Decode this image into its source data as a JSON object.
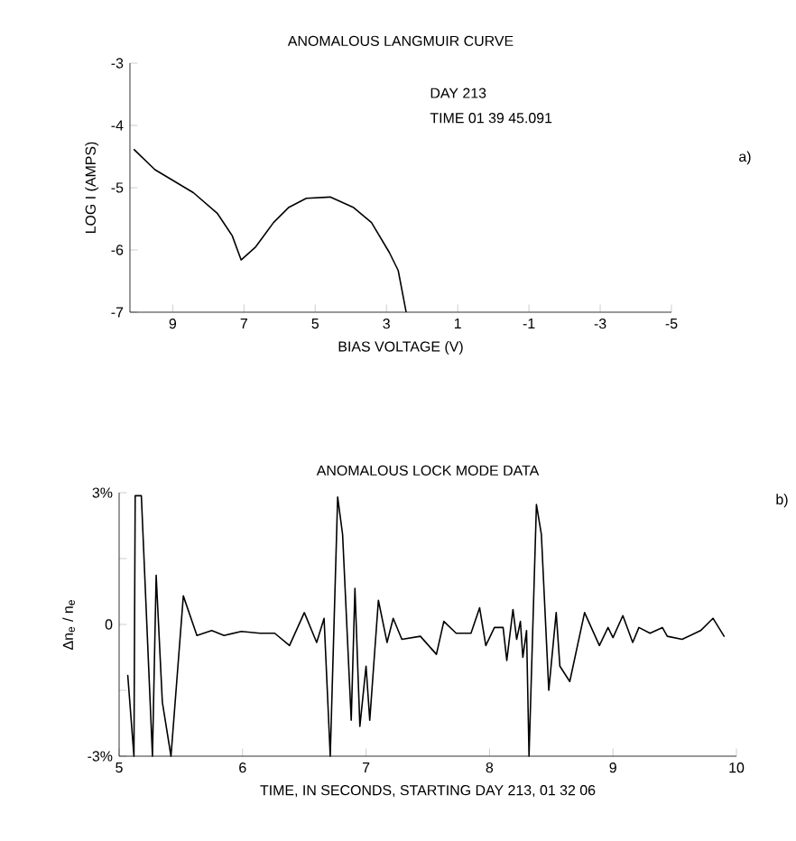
{
  "chart_data": [
    {
      "type": "line",
      "title": "ANOMALOUS LANGMUIR CURVE",
      "xlabel": "BIAS VOLTAGE (V)",
      "ylabel": "LOG I (AMPS)",
      "annotations": [
        "DAY 213",
        "TIME 01 39 45.091",
        "a)"
      ],
      "x": [
        10.08,
        9.5,
        8.42,
        7.75,
        7.33,
        7.08,
        6.67,
        6.17,
        5.75,
        5.25,
        4.58,
        3.92,
        3.42,
        2.92,
        2.67,
        2.45
      ],
      "values": [
        -4.39,
        -4.71,
        -5.08,
        -5.41,
        -5.77,
        -6.16,
        -5.95,
        -5.56,
        -5.32,
        -5.17,
        -5.15,
        -5.32,
        -5.56,
        -6.04,
        -6.33,
        -6.99
      ],
      "color": "#000000",
      "xlim": [
        10.2,
        -5
      ],
      "ylim": [
        -7,
        -3
      ],
      "xticks": [
        9,
        7,
        5,
        3,
        1,
        -1,
        -3,
        -5
      ],
      "yticks": [
        -3,
        -4,
        -5,
        -6,
        -7
      ],
      "grid": false,
      "marker": "none",
      "line_style": "solid"
    },
    {
      "type": "line",
      "title": "ANOMALOUS LOCK MODE DATA",
      "xlabel": "TIME, IN SECONDS, STARTING DAY 213, 01 32 06",
      "ylabel": "Δn$_{e}$ / n$_{e}$",
      "annotations": [
        "b)"
      ],
      "x": [
        5.07,
        5.12,
        5.13,
        5.18,
        5.27,
        5.3,
        5.35,
        5.42,
        5.52,
        5.63,
        5.75,
        5.85,
        5.99,
        6.14,
        6.26,
        6.38,
        6.5,
        6.6,
        6.66,
        6.71,
        6.77,
        6.81,
        6.88,
        6.91,
        6.95,
        7.0,
        7.03,
        7.1,
        7.17,
        7.22,
        7.29,
        7.44,
        7.57,
        7.63,
        7.73,
        7.85,
        7.92,
        7.97,
        8.04,
        8.11,
        8.14,
        8.19,
        8.22,
        8.25,
        8.27,
        8.3,
        8.32,
        8.36,
        8.38,
        8.42,
        8.48,
        8.54,
        8.57,
        8.65,
        8.77,
        8.89,
        8.96,
        9.0,
        9.08,
        9.16,
        9.21,
        9.3,
        9.4,
        9.44,
        9.56,
        9.71,
        9.81,
        9.9
      ],
      "values": [
        -1.16,
        -3,
        2.93,
        2.93,
        -3,
        1.12,
        -1.77,
        -3,
        0.65,
        -0.25,
        -0.14,
        -0.25,
        -0.16,
        -0.2,
        -0.2,
        -0.48,
        0.27,
        -0.41,
        0.14,
        -3,
        2.9,
        2.05,
        -2.18,
        0.82,
        -2.32,
        -0.95,
        -2.18,
        0.55,
        -0.41,
        0.14,
        -0.34,
        -0.27,
        -0.68,
        0.07,
        -0.2,
        -0.2,
        0.38,
        -0.48,
        -0.07,
        -0.07,
        -0.82,
        0.34,
        -0.34,
        0.07,
        -0.75,
        -0.14,
        -3,
        0.82,
        2.73,
        2.05,
        -1.5,
        0.27,
        -0.95,
        -1.3,
        0.27,
        -0.48,
        -0.07,
        -0.3,
        0.2,
        -0.41,
        -0.07,
        -0.2,
        -0.07,
        -0.27,
        -0.34,
        -0.14,
        0.14,
        -0.27
      ],
      "color": "#000000",
      "xlim": [
        5,
        10
      ],
      "ylim": [
        -3,
        3
      ],
      "xticks": [
        5,
        6,
        7,
        8,
        9,
        10
      ],
      "yticks": [
        {
          "value": 3,
          "label": "3%"
        },
        {
          "value": 1.5,
          "label": null
        },
        0,
        {
          "value": -1.5,
          "label": null
        },
        {
          "value": -3,
          "label": "-3%"
        }
      ],
      "grid": false,
      "marker": "none",
      "line_style": "solid"
    }
  ]
}
